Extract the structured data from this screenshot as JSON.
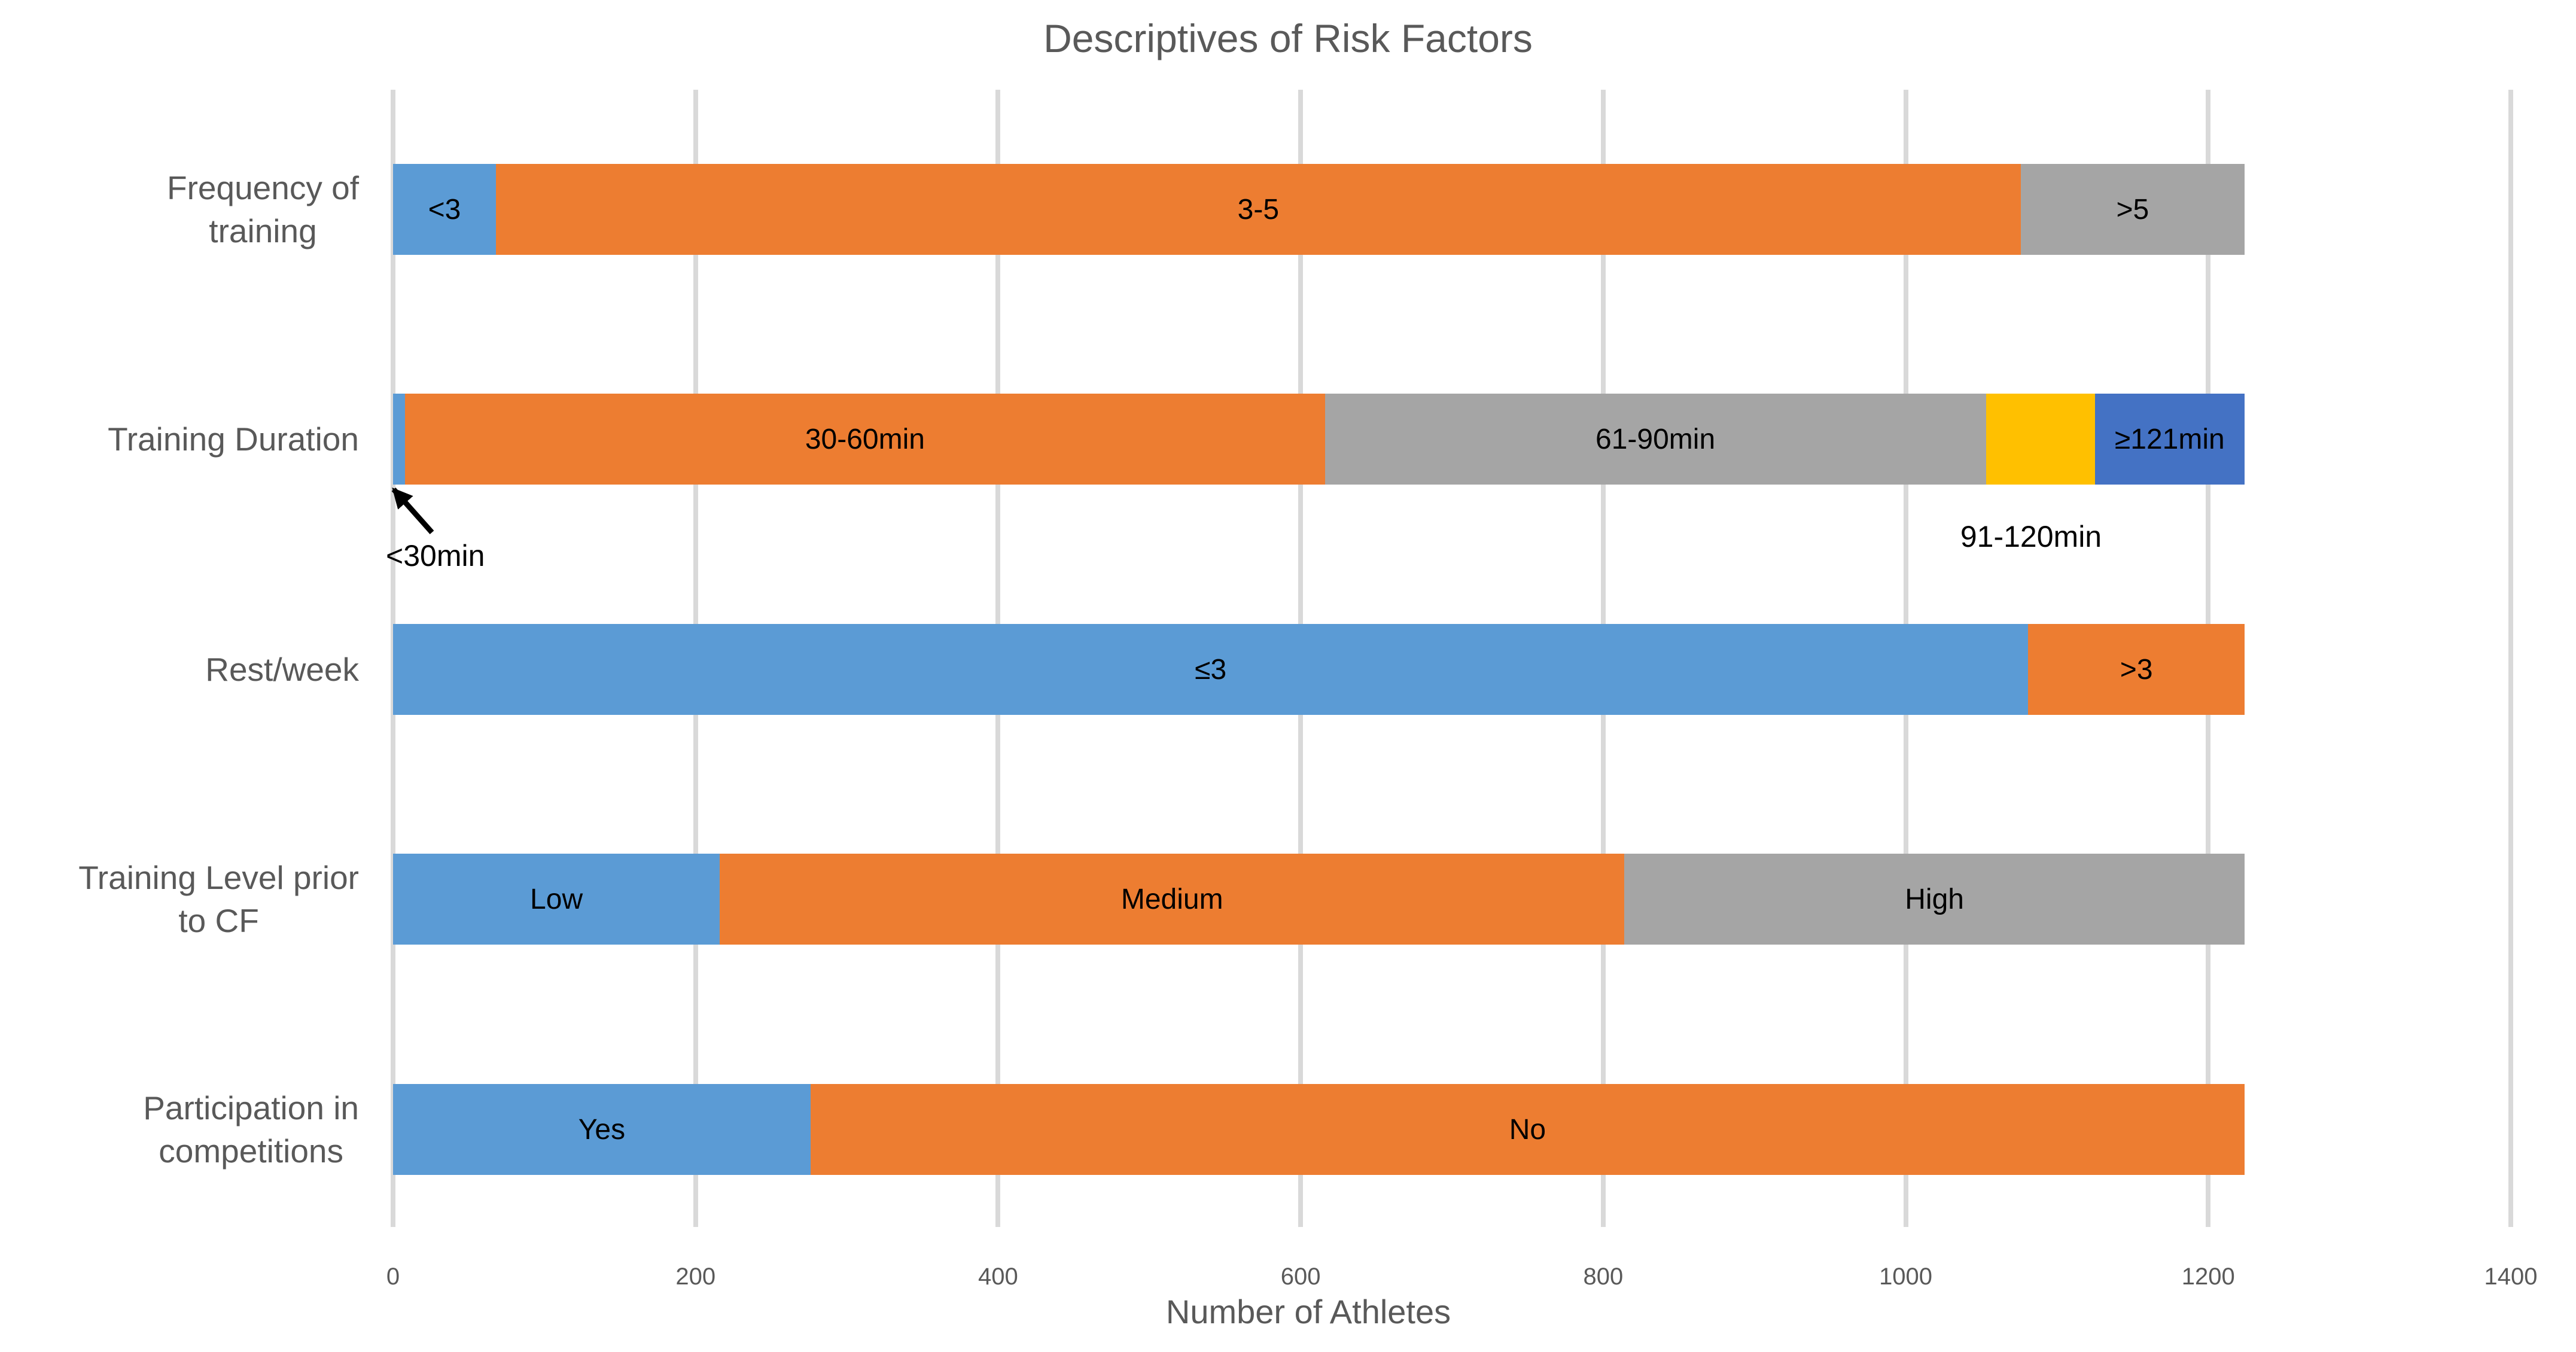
{
  "title": "Descriptives of Risk Factors",
  "colors": {
    "blue": "#5B9BD5",
    "orange": "#ED7D31",
    "gray": "#A5A5A5",
    "yellow": "#FFC000",
    "darkblue": "#4472C4",
    "gridline": "#D9D9D9",
    "axis_text": "#595959",
    "segment_text": "#000000"
  },
  "annotations": {
    "under_30min": "<30min",
    "min_91_120": "91-120min"
  },
  "chart_data": {
    "type": "bar",
    "orientation": "horizontal",
    "stacked": true,
    "grid": true,
    "legend": "none",
    "title": "Descriptives of Risk Factors",
    "xlabel": "Number of Athletes",
    "xlim": [
      0,
      1400
    ],
    "xticks": [
      0,
      200,
      400,
      600,
      800,
      1000,
      1200,
      1400
    ],
    "total_per_row": 1224,
    "categories": [
      "Frequency of training",
      "Training Duration",
      "Rest/week",
      "Training Level prior to CF",
      "Participation in competitions"
    ],
    "rows": [
      {
        "category": "Frequency of training",
        "category_lines": [
          "Frequency of",
          "training"
        ],
        "segments": [
          {
            "label": "<3",
            "value": 68,
            "color": "blue",
            "label_position": "inside"
          },
          {
            "label": "3-5",
            "value": 1008,
            "color": "orange",
            "label_position": "inside"
          },
          {
            "label": ">5",
            "value": 148,
            "color": "gray",
            "label_position": "inside"
          }
        ]
      },
      {
        "category": "Training Duration",
        "category_lines": [
          "Training Duration"
        ],
        "segments": [
          {
            "label": "<30min",
            "value": 8,
            "color": "blue",
            "label_position": "callout-below"
          },
          {
            "label": "30-60min",
            "value": 608,
            "color": "orange",
            "label_position": "inside"
          },
          {
            "label": "61-90min",
            "value": 437,
            "color": "gray",
            "label_position": "inside"
          },
          {
            "label": "91-120min",
            "value": 72,
            "color": "yellow",
            "label_position": "below"
          },
          {
            "label": "≥121min",
            "value": 99,
            "color": "darkblue",
            "label_position": "inside"
          }
        ]
      },
      {
        "category": "Rest/week",
        "category_lines": [
          "Rest/week"
        ],
        "segments": [
          {
            "label": "≤3",
            "value": 1081,
            "color": "blue",
            "label_position": "inside"
          },
          {
            "label": ">3",
            "value": 143,
            "color": "orange",
            "label_position": "inside"
          }
        ]
      },
      {
        "category": "Training Level prior to CF",
        "category_lines": [
          "Training Level prior",
          "to CF"
        ],
        "segments": [
          {
            "label": "Low",
            "value": 216,
            "color": "blue",
            "label_position": "inside"
          },
          {
            "label": "Medium",
            "value": 598,
            "color": "orange",
            "label_position": "inside"
          },
          {
            "label": "High",
            "value": 410,
            "color": "gray",
            "label_position": "inside"
          }
        ]
      },
      {
        "category": "Participation in competitions",
        "category_lines": [
          "Participation in",
          "competitions"
        ],
        "segments": [
          {
            "label": "Yes",
            "value": 276,
            "color": "blue",
            "label_position": "inside"
          },
          {
            "label": "No",
            "value": 948,
            "color": "orange",
            "label_position": "inside"
          }
        ]
      }
    ]
  }
}
